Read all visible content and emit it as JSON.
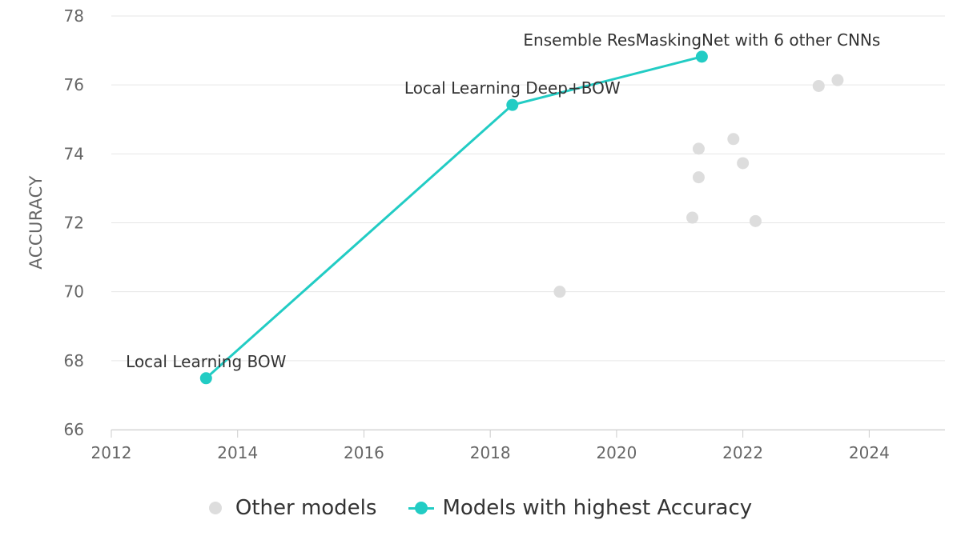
{
  "chart_data": {
    "type": "scatter",
    "title": "",
    "xlabel": "",
    "ylabel": "ACCURACY",
    "xlim": [
      2012,
      2025.2
    ],
    "ylim": [
      66,
      78
    ],
    "x_ticks": [
      2012,
      2014,
      2016,
      2018,
      2020,
      2022,
      2024
    ],
    "y_ticks": [
      66,
      68,
      70,
      72,
      74,
      76,
      78
    ],
    "grid": "horizontal",
    "legend_position": "bottom",
    "colors": {
      "other": "#dddddd",
      "best": "#22ccc4"
    },
    "series": [
      {
        "name": "Other models",
        "style": "points",
        "points": [
          {
            "x": 2019.1,
            "y": 70.0
          },
          {
            "x": 2021.2,
            "y": 72.15
          },
          {
            "x": 2021.3,
            "y": 74.15
          },
          {
            "x": 2021.3,
            "y": 73.32
          },
          {
            "x": 2021.85,
            "y": 74.43
          },
          {
            "x": 2022.0,
            "y": 73.73
          },
          {
            "x": 2022.2,
            "y": 72.05
          },
          {
            "x": 2023.2,
            "y": 75.97
          },
          {
            "x": 2023.5,
            "y": 76.14
          }
        ]
      },
      {
        "name": "Models with highest Accuracy",
        "style": "line",
        "points": [
          {
            "x": 2013.5,
            "y": 67.49,
            "label": "Local Learning BOW"
          },
          {
            "x": 2018.35,
            "y": 75.42,
            "label": "Local Learning Deep+BOW"
          },
          {
            "x": 2021.35,
            "y": 76.82,
            "label": "Ensemble ResMaskingNet with 6 other CNNs"
          }
        ]
      }
    ]
  },
  "legend": {
    "other_label": "Other models",
    "best_label": "Models with highest Accuracy"
  }
}
